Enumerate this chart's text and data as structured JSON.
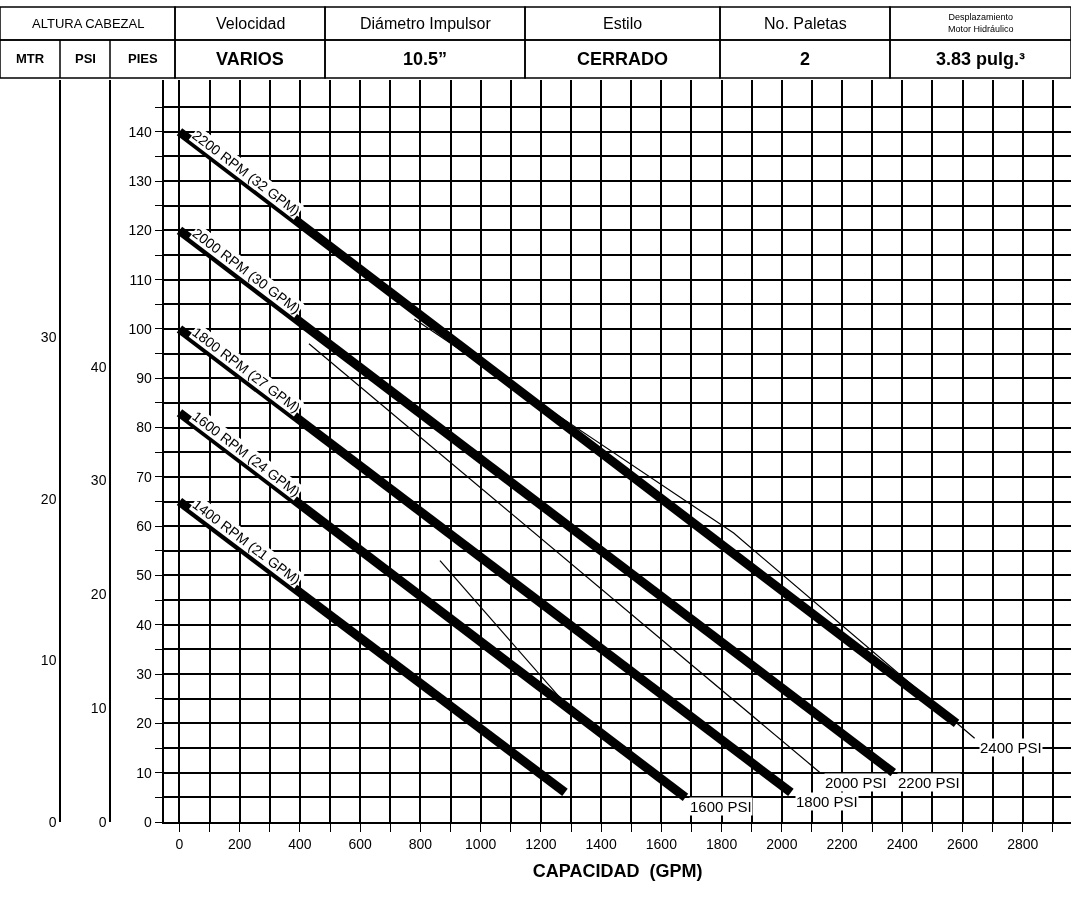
{
  "chart_data": {
    "type": "line",
    "xlabel": "CAPACIDAD  (GPM)",
    "ylabel": "PIES",
    "y2label": "MTR",
    "y3label": "PSI",
    "xlim": [
      -50,
      2960
    ],
    "ylim": [
      0,
      150.5
    ],
    "y2lim": [
      0,
      45.9
    ],
    "y3lim": [
      0,
      65.2
    ],
    "xticks": [
      0,
      {
        "value": 100,
        "label": null
      },
      200,
      {
        "value": 300,
        "label": null
      },
      400,
      {
        "value": 500,
        "label": null
      },
      600,
      {
        "value": 700,
        "label": null
      },
      800,
      {
        "value": 900,
        "label": null
      },
      1000,
      {
        "value": 1100,
        "label": null
      },
      1200,
      {
        "value": 1300,
        "label": null
      },
      1400,
      {
        "value": 1500,
        "label": null
      },
      1600,
      {
        "value": 1700,
        "label": null
      },
      1800,
      {
        "value": 1900,
        "label": null
      },
      2000,
      {
        "value": 2100,
        "label": null
      },
      2200,
      {
        "value": 2300,
        "label": null
      },
      2400,
      {
        "value": 2500,
        "label": null
      },
      2600,
      {
        "value": 2700,
        "label": null
      },
      2800,
      {
        "value": 2900,
        "label": null
      }
    ],
    "yticks": [
      0,
      {
        "value": 5,
        "label": null
      },
      10,
      {
        "value": 15,
        "label": null
      },
      20,
      {
        "value": 25,
        "label": null
      },
      30,
      {
        "value": 35,
        "label": null
      },
      40,
      {
        "value": 45,
        "label": null
      },
      50,
      {
        "value": 55,
        "label": null
      },
      60,
      {
        "value": 65,
        "label": null
      },
      70,
      {
        "value": 75,
        "label": null
      },
      80,
      {
        "value": 85,
        "label": null
      },
      90,
      {
        "value": 95,
        "label": null
      },
      100,
      {
        "value": 105,
        "label": null
      },
      110,
      {
        "value": 115,
        "label": null
      },
      120,
      {
        "value": 125,
        "label": null
      },
      130,
      {
        "value": 135,
        "label": null
      },
      140,
      {
        "value": 145,
        "label": null
      }
    ],
    "y2ticks": [
      0,
      10,
      20,
      30
    ],
    "y3ticks": [
      0,
      10,
      20,
      30,
      40
    ],
    "grid": true,
    "marker": "none",
    "line_style": "solid",
    "series": [
      {
        "name": "2200 RPM (32 GPM)",
        "color": "#000000",
        "x": [
          0,
          2580
        ],
        "values": [
          140,
          20
        ]
      },
      {
        "name": "2000 RPM (30 GPM)",
        "color": "#000000",
        "x": [
          0,
          2370
        ],
        "values": [
          120,
          10
        ]
      },
      {
        "name": "1800 RPM (27 GPM)",
        "color": "#000000",
        "x": [
          0,
          2030
        ],
        "values": [
          100,
          6
        ]
      },
      {
        "name": "1600 RPM (24 GPM)",
        "color": "#000000",
        "x": [
          0,
          1680
        ],
        "values": [
          83,
          5
        ]
      },
      {
        "name": "1400 RPM (21 GPM)",
        "color": "#000000",
        "x": [
          0,
          1280
        ],
        "values": [
          65,
          6
        ]
      },
      {
        "color": "#000000",
        "x": [
          780,
          1840,
          2640
        ],
        "values": [
          102,
          58.6,
          17
        ]
      },
      {
        "color": "#000000",
        "x": [
          430,
          2127
        ],
        "values": [
          97,
          10
        ]
      },
      {
        "color": "#000000",
        "x": [
          865,
          1295
        ],
        "values": [
          53,
          23
        ]
      }
    ],
    "annotations": [
      "ALTURA CABEZAL",
      "Velocidad",
      "Diámetro Impulsor",
      "Estilo",
      "No. Paletas",
      "Desplazamiento\nMotor Hidráulico",
      "VARIOS",
      "10.5”",
      "CERRADO",
      "2",
      "3.83 pulg.³",
      {
        "text": "2400 PSI",
        "x": 2640,
        "y": 17
      },
      {
        "text": "2200 PSI",
        "x": 2370,
        "y": 10
      },
      {
        "text": "2000 PSI",
        "x": 2127,
        "y": 10
      },
      {
        "text": "1800 PSI",
        "x": 2030,
        "y": 6
      },
      {
        "text": "1600 PSI",
        "x": 1680,
        "y": 5
      }
    ]
  }
}
